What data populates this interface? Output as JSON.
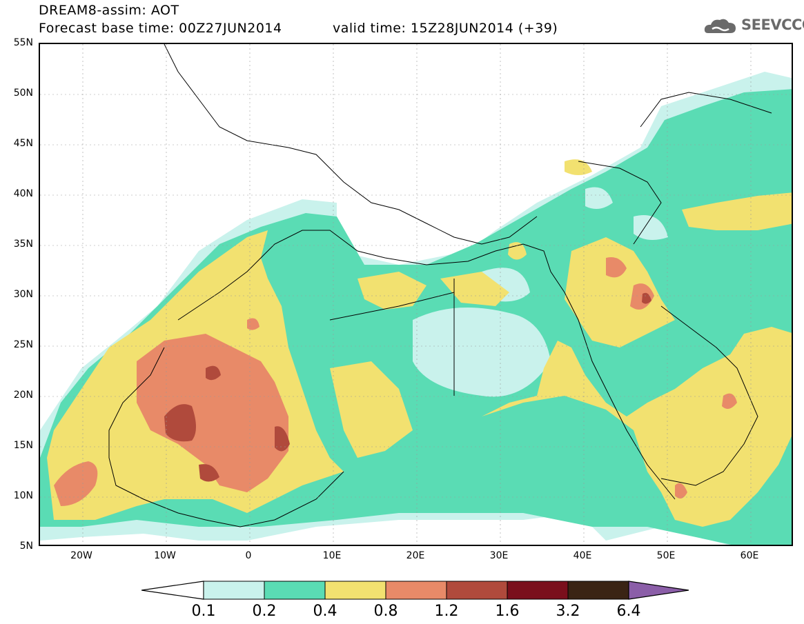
{
  "header": {
    "line1": "DREAM8-assim: AOT",
    "line2": "Forecast base time: 00Z27JUN2014",
    "line2b": "valid time: 15Z28JUN2014 (+39)"
  },
  "logo": {
    "text": "SEEVCCC",
    "icon": "cloud-icon"
  },
  "axes": {
    "lat_labels": [
      "55N",
      "50N",
      "45N",
      "40N",
      "35N",
      "30N",
      "25N",
      "20N",
      "15N",
      "10N",
      "5N"
    ],
    "lon_labels": [
      "20W",
      "10W",
      "0",
      "10E",
      "20E",
      "30E",
      "40E",
      "50E",
      "60E"
    ]
  },
  "colorbar": {
    "labels": [
      "0.1",
      "0.2",
      "0.4",
      "0.8",
      "1.2",
      "1.6",
      "3.2",
      "6.4"
    ],
    "colors": [
      "#c9f2ec",
      "#5adcb4",
      "#f2e170",
      "#e88a68",
      "#b04a3c",
      "#7a0f1c",
      "#3a2414",
      "#8b5ea8"
    ]
  }
}
